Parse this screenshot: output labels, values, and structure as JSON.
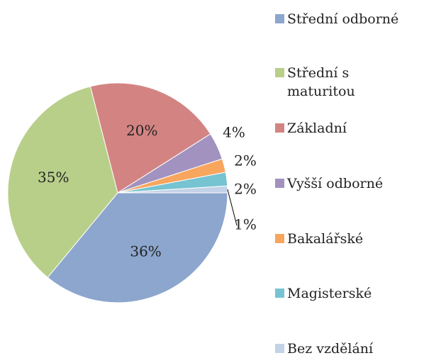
{
  "chart_data": {
    "type": "pie",
    "categories": [
      "Střední odborné",
      "Střední s maturitou",
      "Základní",
      "Vyšší odborné",
      "Bakalářské",
      "Magisterské",
      "Bez vzdělání"
    ],
    "values": [
      36,
      35,
      20,
      4,
      2,
      2,
      1
    ],
    "value_labels": [
      "36%",
      "35%",
      "20%",
      "4%",
      "2%",
      "2%",
      "1%"
    ],
    "colors": [
      "#8ca6cd",
      "#b8cf8a",
      "#d38482",
      "#a192bf",
      "#f8a55e",
      "#76c3d1",
      "#c3d2e6"
    ],
    "legend": "right"
  }
}
